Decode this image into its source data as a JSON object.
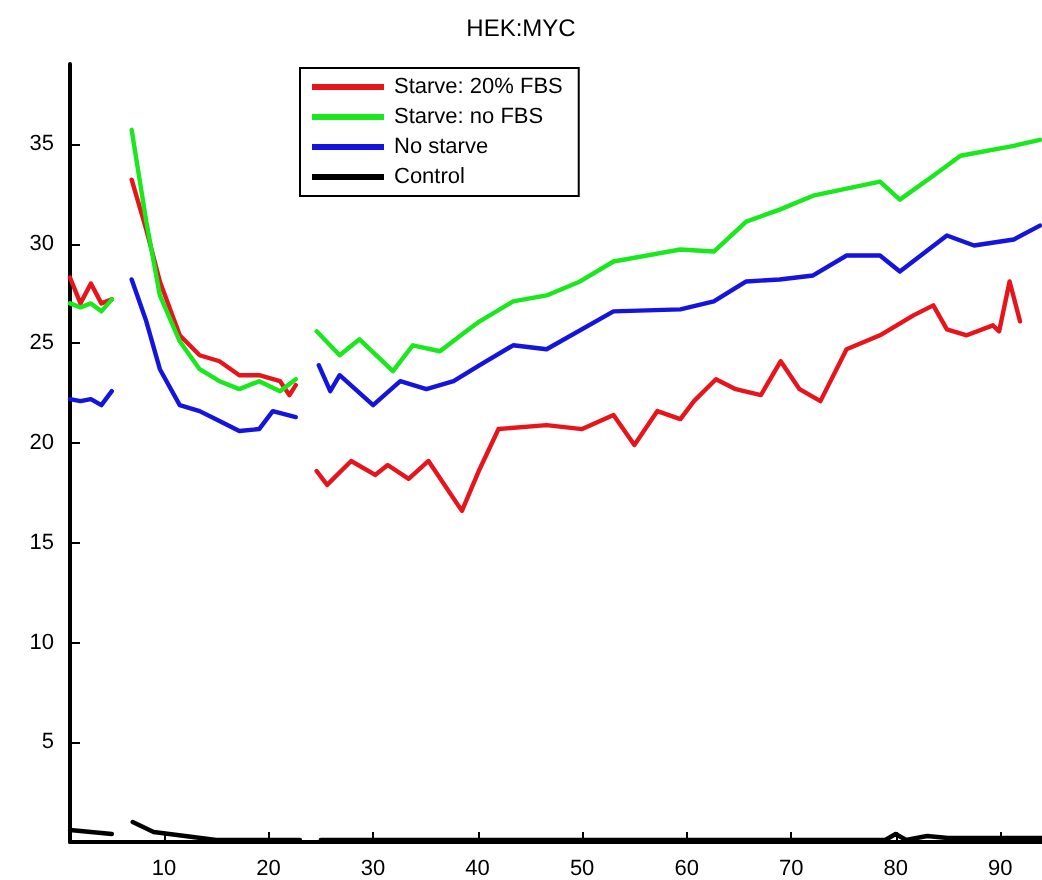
{
  "chart_data": {
    "type": "line",
    "title": "HEK:MYC",
    "xlim": [
      1,
      94
    ],
    "ylim": [
      0,
      39
    ],
    "xticks": [
      10,
      20,
      30,
      40,
      50,
      60,
      70,
      80,
      90
    ],
    "yticks": [
      5,
      10,
      15,
      20,
      25,
      30,
      35
    ],
    "grid": false,
    "legend": "top",
    "marker": "none",
    "line_style": "solid",
    "series": [
      {
        "name": "Starve: 20% FBS",
        "color": "#e8141c",
        "x": [
          1,
          2,
          3,
          4,
          5,
          6,
          6.9,
          8.3,
          9.6,
          11.5,
          13.4,
          15.3,
          17.2,
          19.1,
          21.1,
          22,
          22.6,
          24,
          24.6,
          25.6,
          27.9,
          30.2,
          31.4,
          33.4,
          35.3,
          38.5,
          40.2,
          42,
          46.6,
          50,
          53,
          55,
          57.2,
          59.4,
          60.7,
          62.8,
          64.7,
          67.1,
          69,
          70.8,
          72.8,
          75.3,
          78.5,
          81.7,
          83.6,
          84.9,
          86.8,
          89.3,
          89.9,
          90.9,
          91.9
        ],
        "values": [
          28.3,
          27,
          28,
          27,
          27.2,
          null,
          33.2,
          30.7,
          28.1,
          25.4,
          24.4,
          24.1,
          23.4,
          23.4,
          23.1,
          22.4,
          22.9,
          null,
          18.6,
          17.9,
          19.1,
          18.4,
          18.9,
          18.2,
          19.1,
          16.6,
          18.7,
          20.7,
          20.9,
          20.7,
          21.4,
          19.9,
          21.6,
          21.2,
          22.1,
          23.2,
          22.7,
          22.4,
          24.1,
          22.7,
          22.1,
          24.7,
          25.4,
          26.4,
          26.9,
          25.7,
          25.4,
          25.9,
          25.6,
          28.1,
          26.1
        ]
      },
      {
        "name": "Starve: no FBS",
        "color": "#18e81c",
        "x": [
          1,
          2,
          3,
          4,
          5,
          6,
          6.9,
          8.3,
          9.6,
          11.5,
          13.4,
          15.3,
          17.2,
          19.1,
          21.1,
          22.6,
          24,
          24.6,
          26.8,
          28.7,
          31.9,
          33.8,
          36.4,
          38.9,
          40.2,
          43.4,
          46.6,
          49.8,
          53,
          59.4,
          62.6,
          65.7,
          68.9,
          72.1,
          78.5,
          80.4,
          83.6,
          86.2,
          91.3,
          93.8
        ],
        "values": [
          27,
          26.8,
          27,
          26.6,
          27.2,
          null,
          35.7,
          31.1,
          27.4,
          25.1,
          23.7,
          23.1,
          22.7,
          23.1,
          22.6,
          23.2,
          null,
          25.6,
          24.4,
          25.2,
          23.6,
          24.9,
          24.6,
          25.6,
          26.1,
          27.1,
          27.4,
          28.1,
          29.1,
          29.7,
          29.6,
          31.1,
          31.7,
          32.4,
          33.1,
          32.2,
          33.4,
          34.4,
          34.9,
          35.2
        ]
      },
      {
        "name": "No starve",
        "color": "#1414dc",
        "x": [
          1,
          2,
          3,
          4,
          5,
          6,
          6.9,
          8.3,
          9.6,
          11.5,
          13.4,
          15.3,
          17.2,
          19.1,
          20.4,
          22.6,
          24,
          24.8,
          25.9,
          26.8,
          30,
          32.6,
          35.1,
          37.7,
          40.2,
          43.4,
          46.6,
          53,
          59.4,
          62.6,
          65.7,
          68.9,
          72.1,
          75.3,
          78.5,
          80.4,
          84.9,
          87.5,
          91.3,
          93.8
        ],
        "values": [
          22.2,
          22.1,
          22.2,
          21.9,
          22.6,
          null,
          28.2,
          26.1,
          23.7,
          21.9,
          21.6,
          21.1,
          20.6,
          20.7,
          21.6,
          21.3,
          null,
          23.9,
          22.6,
          23.4,
          21.9,
          23.1,
          22.7,
          23.1,
          23.9,
          24.9,
          24.7,
          26.6,
          26.7,
          27.1,
          28.1,
          28.2,
          28.4,
          29.4,
          29.4,
          28.6,
          30.4,
          29.9,
          30.2,
          30.9
        ]
      },
      {
        "name": "Control",
        "color": "#000000",
        "x": [
          1,
          3,
          5,
          6,
          7,
          9,
          12,
          15,
          23,
          24,
          25,
          40,
          60,
          79,
          80,
          81,
          83,
          85,
          90,
          94
        ],
        "values": [
          0.6,
          0.5,
          0.4,
          null,
          1,
          0.5,
          0.3,
          0.1,
          0.1,
          null,
          0.1,
          0.1,
          0.1,
          0.1,
          0.4,
          0.1,
          0.3,
          0.2,
          0.2,
          0.2
        ]
      }
    ]
  }
}
